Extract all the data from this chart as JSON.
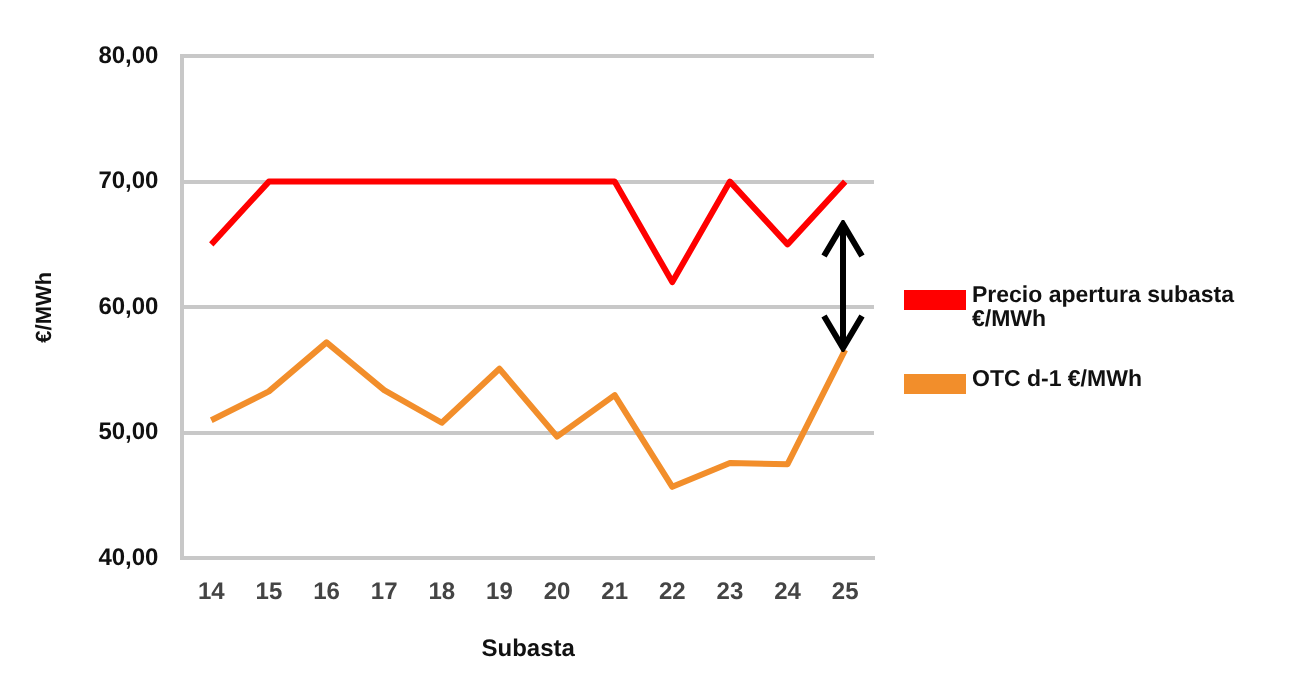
{
  "chart_data": {
    "type": "line",
    "ylabel": "€/MWh",
    "xlabel": "Subasta",
    "categories": [
      "14",
      "15",
      "16",
      "17",
      "18",
      "19",
      "20",
      "21",
      "22",
      "23",
      "24",
      "25"
    ],
    "series": [
      {
        "name": "Precio apertura subasta €/MWh",
        "color": "#ff0000",
        "values": [
          65,
          70,
          70,
          70,
          70,
          70,
          70,
          70,
          62,
          70,
          65,
          70
        ]
      },
      {
        "name": "OTC d-1 €/MWh",
        "color": "#f28e2b",
        "values": [
          51.0,
          53.3,
          57.2,
          53.4,
          50.8,
          55.1,
          49.7,
          53.0,
          45.7,
          47.6,
          47.5,
          56.6
        ]
      }
    ],
    "ylim": [
      40,
      80
    ],
    "yticks": [
      {
        "value": 40,
        "label": "40,00"
      },
      {
        "value": 50,
        "label": "50,00"
      },
      {
        "value": 60,
        "label": "60,00"
      },
      {
        "value": 70,
        "label": "70,00"
      },
      {
        "value": 80,
        "label": "80,00"
      }
    ],
    "grid": "y",
    "legend": "right",
    "marker": "none",
    "line_style": "solid"
  }
}
